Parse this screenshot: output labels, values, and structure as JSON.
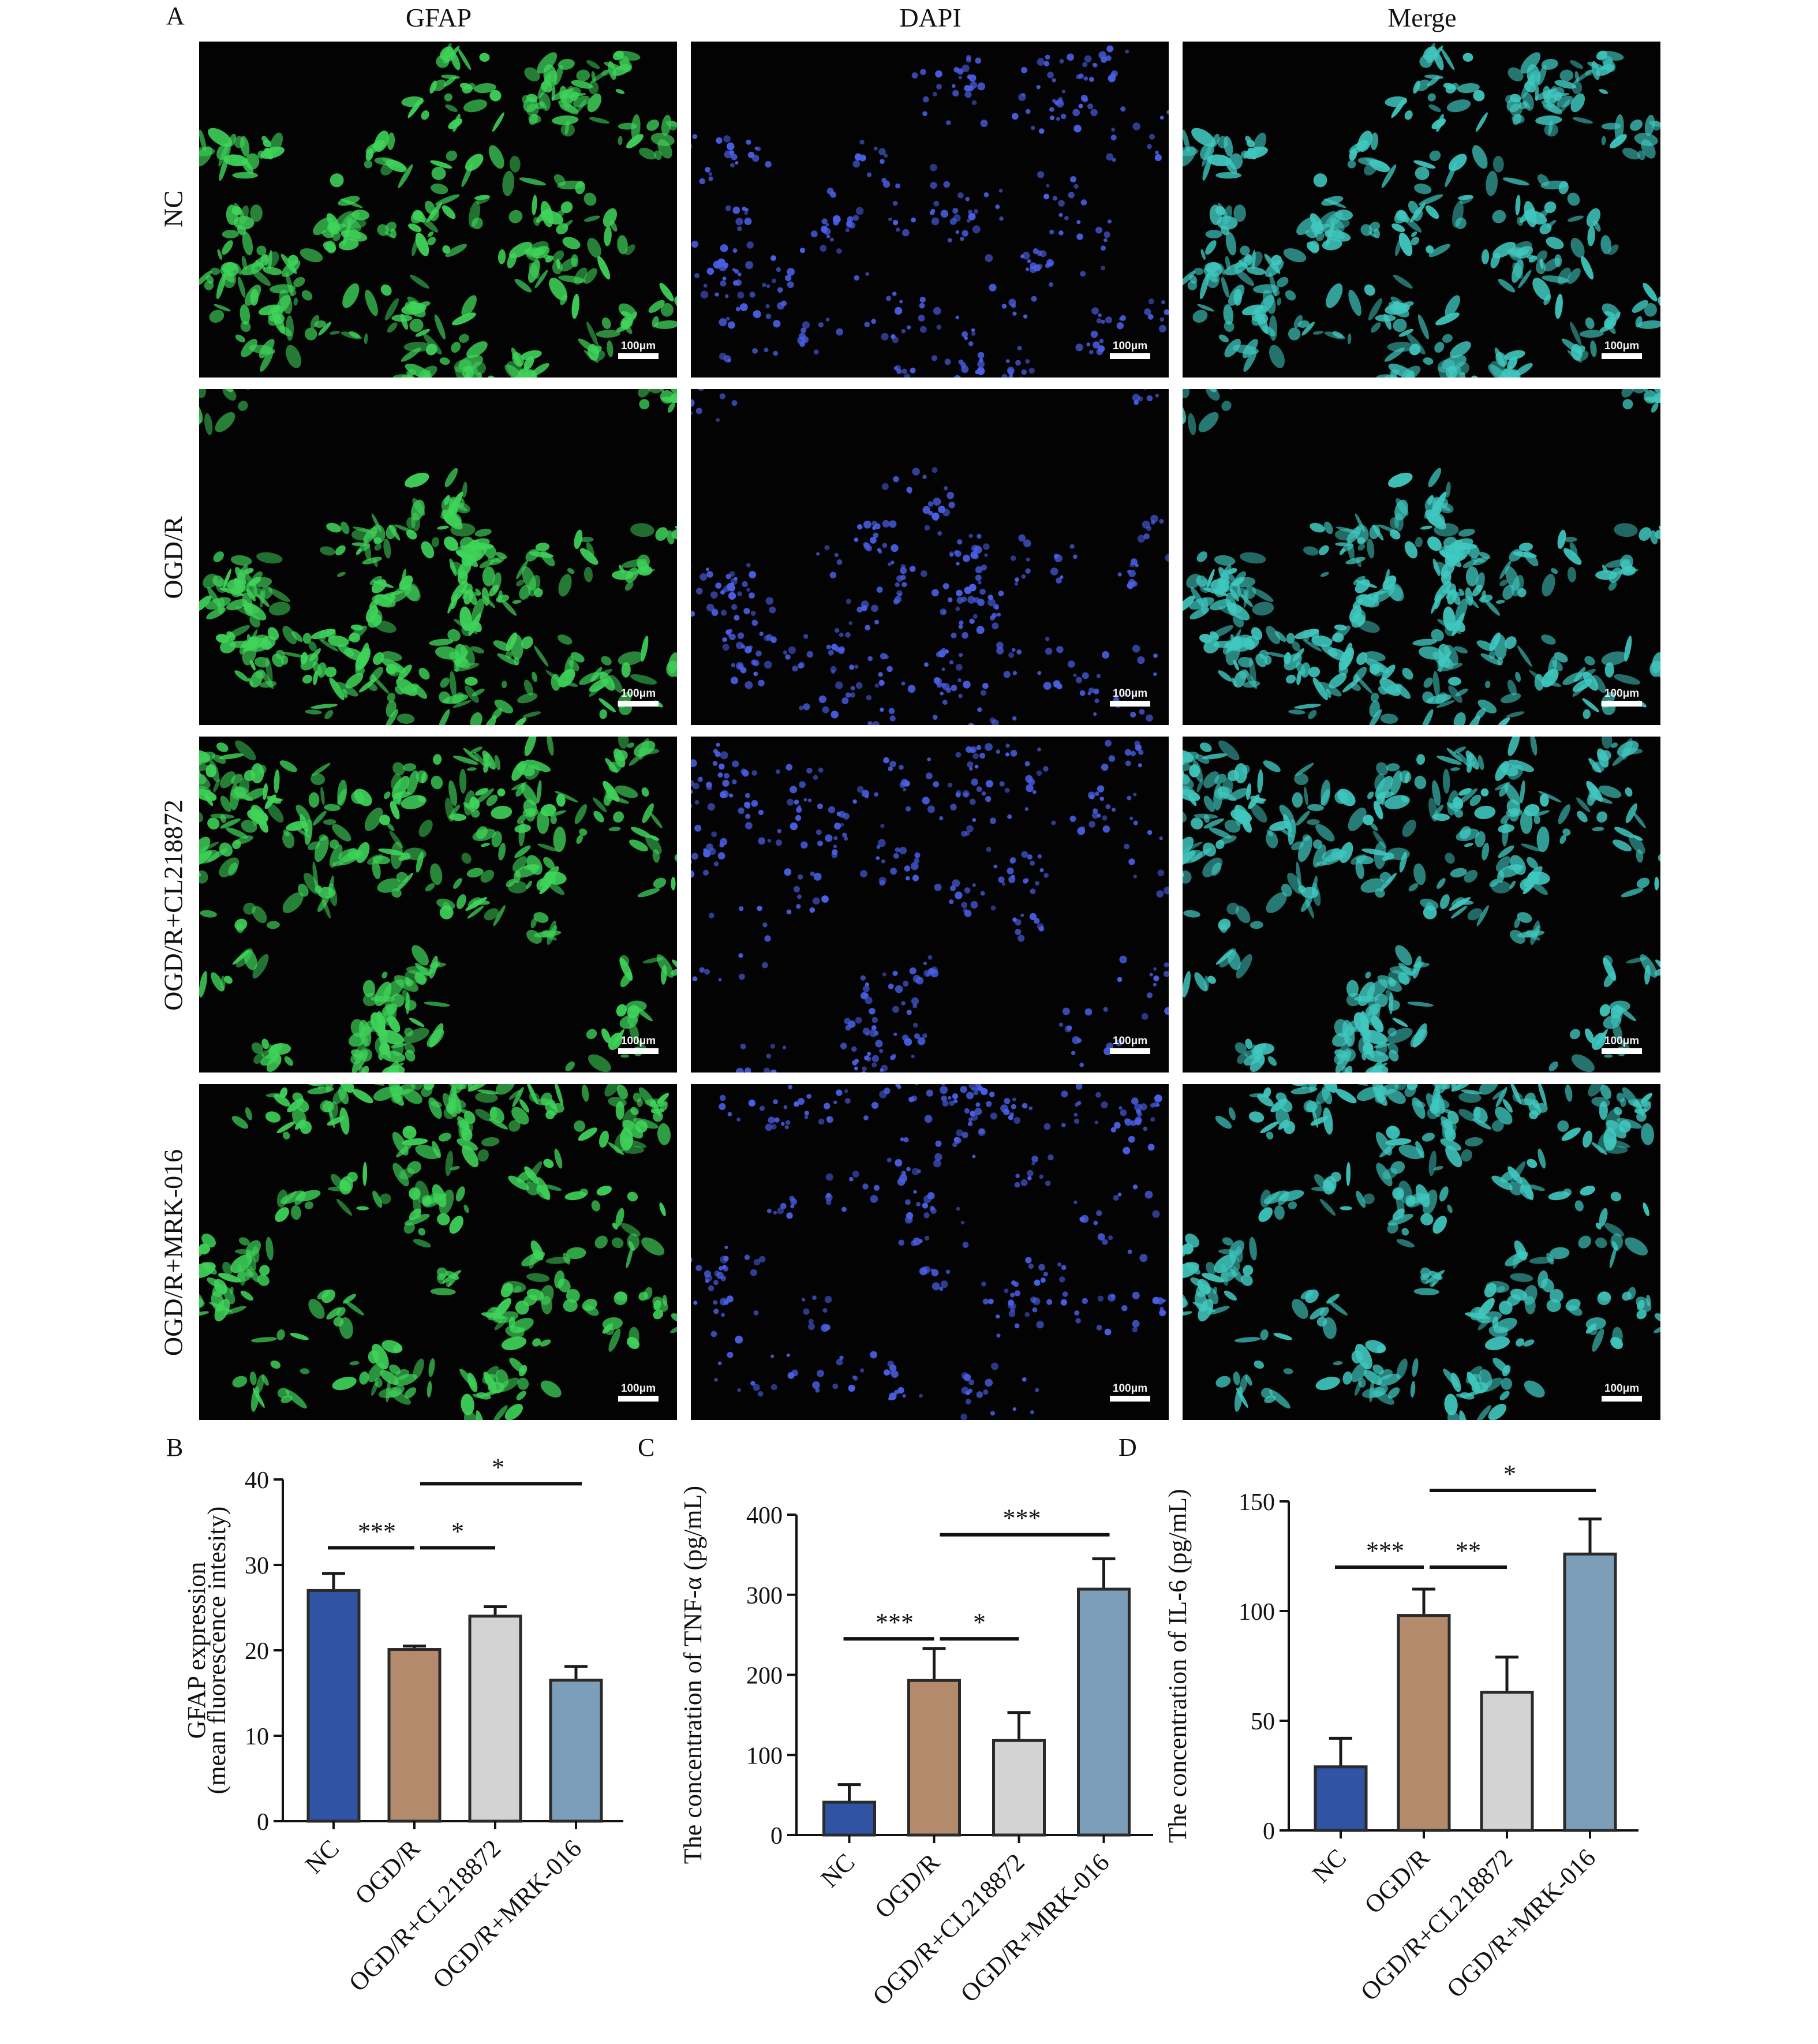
{
  "panel_a": {
    "letter": "A",
    "columns": [
      "GFAP",
      "DAPI",
      "Merge"
    ],
    "rows": [
      "NC",
      "OGD/R",
      "OGD/R+CL218872",
      "OGD/R+MRK-016"
    ],
    "scale_label": "100μm",
    "colors": {
      "gfap": "#3fd45a",
      "dapi": "#4a5fe6",
      "merge": "#40c8c0"
    }
  },
  "chart_data": [
    {
      "panel": "B",
      "type": "bar",
      "categories": [
        "NC",
        "OGD/R",
        "OGD/R+CL218872",
        "OGD/R+MRK-016"
      ],
      "values": [
        27,
        20.1,
        24,
        16.5
      ],
      "errors": [
        2,
        0.4,
        1.1,
        1.6
      ],
      "colors": [
        "#3153a3",
        "#b48a6c",
        "#d3d3d3",
        "#7c9eb9"
      ],
      "ylabel_lines": [
        "GFAP expression",
        "(mean fluorescence intesity)"
      ],
      "ylim": [
        0,
        40
      ],
      "yticks": [
        0,
        10,
        20,
        30,
        40
      ],
      "significance": [
        {
          "from": 0,
          "to": 1,
          "label": "***",
          "y": 32
        },
        {
          "from": 1,
          "to": 2,
          "label": "*",
          "y": 32
        },
        {
          "from": 1,
          "to": 3,
          "label": "*",
          "y": 39.5
        }
      ]
    },
    {
      "panel": "C",
      "type": "bar",
      "categories": [
        "NC",
        "OGD/R",
        "OGD/R+CL218872",
        "OGD/R+MRK-016"
      ],
      "values": [
        41,
        193,
        118,
        307
      ],
      "errors": [
        22,
        40,
        35,
        38
      ],
      "colors": [
        "#3153a3",
        "#b48a6c",
        "#d3d3d3",
        "#7c9eb9"
      ],
      "ylabel": "The concentration of TNF-α (pg/mL)",
      "ylim": [
        0,
        400
      ],
      "yticks": [
        0,
        100,
        200,
        300,
        400
      ],
      "significance": [
        {
          "from": 0,
          "to": 1,
          "label": "***",
          "y": 245
        },
        {
          "from": 1,
          "to": 2,
          "label": "*",
          "y": 245
        },
        {
          "from": 1,
          "to": 3,
          "label": "***",
          "y": 375
        }
      ]
    },
    {
      "panel": "D",
      "type": "bar",
      "categories": [
        "NC",
        "OGD/R",
        "OGD/R+CL218872",
        "OGD/R+MRK-016"
      ],
      "values": [
        29,
        98,
        63,
        126
      ],
      "errors": [
        13,
        12,
        16,
        16
      ],
      "colors": [
        "#3153a3",
        "#b48a6c",
        "#d3d3d3",
        "#7c9eb9"
      ],
      "ylabel": "The concentration of IL-6 (pg/mL)",
      "ylim": [
        0,
        150
      ],
      "yticks": [
        0,
        50,
        100,
        150
      ],
      "significance": [
        {
          "from": 0,
          "to": 1,
          "label": "***",
          "y": 120
        },
        {
          "from": 1,
          "to": 2,
          "label": "**",
          "y": 120
        },
        {
          "from": 1,
          "to": 3,
          "label": "*",
          "y": 155
        }
      ]
    }
  ]
}
